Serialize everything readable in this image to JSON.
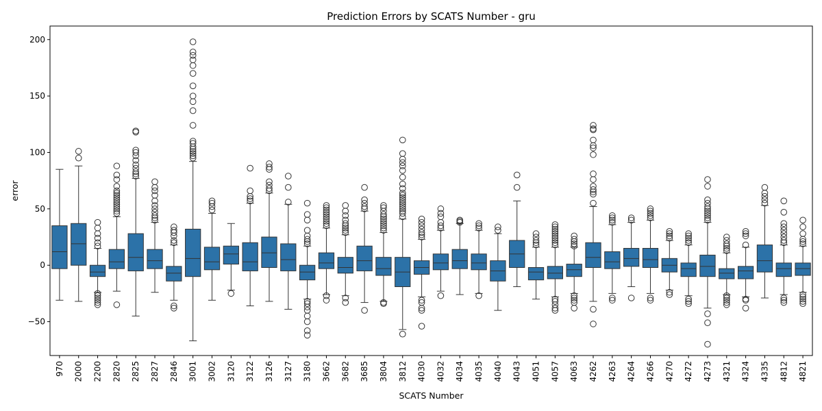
{
  "chart_data": {
    "type": "box",
    "title": "Prediction Errors by SCATS Number - gru",
    "xlabel": "SCATS Number",
    "ylabel": "error",
    "ylim": [
      -80,
      212
    ],
    "yticks": [
      -50,
      0,
      50,
      100,
      150,
      200
    ],
    "box_color": "#2c72a8",
    "line_color": "#333333",
    "grid": false,
    "categories": [
      "970",
      "2000",
      "2200",
      "2820",
      "2825",
      "2827",
      "2846",
      "3001",
      "3002",
      "3120",
      "3122",
      "3126",
      "3127",
      "3180",
      "3662",
      "3682",
      "3685",
      "3804",
      "3812",
      "4030",
      "4032",
      "4034",
      "4035",
      "4040",
      "4043",
      "4051",
      "4057",
      "4063",
      "4262",
      "4263",
      "4264",
      "4266",
      "4270",
      "4272",
      "4273",
      "4321",
      "4324",
      "4335",
      "4812",
      "4821"
    ],
    "boxes": [
      {
        "q1": -3,
        "median": 12,
        "q3": 35,
        "whislo": -31,
        "whishi": 85,
        "fliers": []
      },
      {
        "q1": 0,
        "median": 19,
        "q3": 37,
        "whislo": -32,
        "whishi": 88,
        "fliers": [
          95,
          101
        ]
      },
      {
        "q1": -10,
        "median": -6,
        "q3": 0,
        "whislo": -24,
        "whishi": 15,
        "fliers": [
          17,
          20,
          24,
          28,
          33,
          38,
          -25,
          -27,
          -29,
          -31,
          -33,
          -35
        ]
      },
      {
        "q1": -3,
        "median": 3,
        "q3": 14,
        "whislo": -23,
        "whishi": 43,
        "fliers": [
          46,
          48,
          50,
          52,
          54,
          56,
          58,
          60,
          62,
          64,
          66,
          70,
          76,
          80,
          88,
          -35
        ]
      },
      {
        "q1": -5,
        "median": 7,
        "q3": 28,
        "whislo": -45,
        "whishi": 77,
        "fliers": [
          79,
          81,
          83,
          86,
          89,
          93,
          97,
          100,
          102,
          118,
          119
        ]
      },
      {
        "q1": -3,
        "median": 4,
        "q3": 14,
        "whislo": -24,
        "whishi": 38,
        "fliers": [
          40,
          42,
          44,
          47,
          50,
          53,
          57,
          62,
          66,
          69,
          74
        ]
      },
      {
        "q1": -14,
        "median": -7,
        "q3": -1,
        "whislo": -31,
        "whishi": 18,
        "fliers": [
          20,
          22,
          26,
          29,
          31,
          34,
          -36,
          -38
        ]
      },
      {
        "q1": -10,
        "median": 6,
        "q3": 32,
        "whislo": -67,
        "whishi": 92,
        "fliers": [
          95,
          97,
          99,
          101,
          103,
          105,
          108,
          110,
          124,
          137,
          145,
          150,
          159,
          170,
          177,
          182,
          186,
          189,
          198
        ]
      },
      {
        "q1": -4,
        "median": 3,
        "q3": 16,
        "whislo": -31,
        "whishi": 46,
        "fliers": [
          49,
          52,
          55,
          57
        ]
      },
      {
        "q1": 1,
        "median": 10,
        "q3": 17,
        "whislo": -22,
        "whishi": 37,
        "fliers": [
          -25
        ]
      },
      {
        "q1": -5,
        "median": 3,
        "q3": 20,
        "whislo": -36,
        "whishi": 55,
        "fliers": [
          57,
          59,
          61,
          66,
          86
        ]
      },
      {
        "q1": -2,
        "median": 11,
        "q3": 25,
        "whislo": -32,
        "whishi": 64,
        "fliers": [
          66,
          68,
          71,
          74,
          85,
          87,
          90
        ]
      },
      {
        "q1": -5,
        "median": 5,
        "q3": 19,
        "whislo": -39,
        "whishi": 54,
        "fliers": [
          56,
          69,
          79
        ]
      },
      {
        "q1": -13,
        "median": -6,
        "q3": 0,
        "whislo": -30,
        "whishi": 17,
        "fliers": [
          19,
          21,
          23,
          26,
          31,
          40,
          45,
          55,
          -32,
          -34,
          -37,
          -40,
          -45,
          -50,
          -58,
          -62
        ]
      },
      {
        "q1": -3,
        "median": 2,
        "q3": 11,
        "whislo": -26,
        "whishi": 33,
        "fliers": [
          35,
          37,
          39,
          41,
          43,
          45,
          47,
          49,
          51,
          53,
          -27,
          -31
        ]
      },
      {
        "q1": -7,
        "median": -2,
        "q3": 7,
        "whislo": -27,
        "whishi": 27,
        "fliers": [
          29,
          31,
          33,
          35,
          37,
          40,
          44,
          48,
          53,
          -29,
          -33
        ]
      },
      {
        "q1": -5,
        "median": 4,
        "q3": 17,
        "whislo": -33,
        "whishi": 48,
        "fliers": [
          50,
          52,
          55,
          58,
          69,
          -40
        ]
      },
      {
        "q1": -9,
        "median": -3,
        "q3": 7,
        "whislo": -32,
        "whishi": 29,
        "fliers": [
          31,
          33,
          35,
          37,
          39,
          41,
          43,
          45,
          48,
          51,
          53,
          -33,
          -34
        ]
      },
      {
        "q1": -19,
        "median": -6,
        "q3": 7,
        "whislo": -57,
        "whishi": 41,
        "fliers": [
          43,
          46,
          48,
          50,
          52,
          54,
          56,
          58,
          60,
          62,
          64,
          68,
          72,
          78,
          84,
          88,
          91,
          94,
          99,
          111,
          -61
        ]
      },
      {
        "q1": -8,
        "median": -2,
        "q3": 4,
        "whislo": -28,
        "whishi": 23,
        "fliers": [
          25,
          27,
          29,
          32,
          35,
          38,
          41,
          -31,
          -33,
          -38,
          -40,
          -54
        ]
      },
      {
        "q1": -4,
        "median": 2,
        "q3": 10,
        "whislo": -23,
        "whishi": 31,
        "fliers": [
          33,
          35,
          38,
          43,
          46,
          50,
          -27
        ]
      },
      {
        "q1": -3,
        "median": 4,
        "q3": 14,
        "whislo": -26,
        "whishi": 37,
        "fliers": [
          38,
          39,
          40
        ]
      },
      {
        "q1": -4,
        "median": 2,
        "q3": 10,
        "whislo": -25,
        "whishi": 31,
        "fliers": [
          33,
          35,
          37,
          -27
        ]
      },
      {
        "q1": -14,
        "median": -5,
        "q3": 4,
        "whislo": -40,
        "whishi": 28,
        "fliers": [
          31,
          34
        ]
      },
      {
        "q1": -2,
        "median": 10,
        "q3": 22,
        "whislo": -19,
        "whishi": 57,
        "fliers": [
          69,
          80
        ]
      },
      {
        "q1": -13,
        "median": -6,
        "q3": -2,
        "whislo": -30,
        "whishi": 16,
        "fliers": [
          18,
          20,
          22,
          25,
          28
        ]
      },
      {
        "q1": -12,
        "median": -7,
        "q3": -1,
        "whislo": -28,
        "whishi": 16,
        "fliers": [
          18,
          20,
          22,
          24,
          26,
          28,
          30,
          32,
          34,
          36,
          -30,
          -32,
          -35,
          -38,
          -40
        ]
      },
      {
        "q1": -10,
        "median": -4,
        "q3": 1,
        "whislo": -25,
        "whishi": 16,
        "fliers": [
          17,
          19,
          21,
          23,
          26,
          -27,
          -29,
          -31,
          -33,
          -38
        ]
      },
      {
        "q1": -2,
        "median": 7,
        "q3": 20,
        "whislo": -32,
        "whishi": 52,
        "fliers": [
          55,
          63,
          65,
          67,
          70,
          76,
          81,
          98,
          104,
          106,
          111,
          120,
          121,
          124,
          -39,
          -52
        ]
      },
      {
        "q1": -3,
        "median": 3,
        "q3": 12,
        "whislo": -25,
        "whishi": 36,
        "fliers": [
          38,
          40,
          42,
          44,
          -29,
          -31
        ]
      },
      {
        "q1": -1,
        "median": 6,
        "q3": 15,
        "whislo": -19,
        "whishi": 38,
        "fliers": [
          40,
          42,
          -29
        ]
      },
      {
        "q1": -2,
        "median": 5,
        "q3": 15,
        "whislo": -25,
        "whishi": 40,
        "fliers": [
          42,
          44,
          46,
          48,
          50,
          -29,
          -31
        ]
      },
      {
        "q1": -6,
        "median": 0,
        "q3": 6,
        "whislo": -22,
        "whishi": 22,
        "fliers": [
          24,
          26,
          28,
          30,
          -24,
          -26
        ]
      },
      {
        "q1": -10,
        "median": -3,
        "q3": 2,
        "whislo": -27,
        "whishi": 18,
        "fliers": [
          20,
          22,
          24,
          26,
          28,
          -30,
          -32,
          -34
        ]
      },
      {
        "q1": -10,
        "median": -1,
        "q3": 9,
        "whislo": -38,
        "whishi": 38,
        "fliers": [
          40,
          42,
          44,
          46,
          48,
          50,
          52,
          55,
          58,
          70,
          76,
          -43,
          -51,
          -70
        ]
      },
      {
        "q1": -12,
        "median": -7,
        "q3": -3,
        "whislo": -26,
        "whishi": 11,
        "fliers": [
          13,
          15,
          17,
          19,
          22,
          25,
          -27,
          -29,
          -31,
          -33,
          -35
        ]
      },
      {
        "q1": -12,
        "median": -5,
        "q3": -1,
        "whislo": -28,
        "whishi": 16,
        "fliers": [
          18,
          26,
          28,
          30,
          -30,
          -31,
          -38
        ]
      },
      {
        "q1": -6,
        "median": 4,
        "q3": 18,
        "whislo": -29,
        "whishi": 53,
        "fliers": [
          55,
          58,
          61,
          64,
          69
        ]
      },
      {
        "q1": -10,
        "median": -3,
        "q3": 2,
        "whislo": -26,
        "whishi": 18,
        "fliers": [
          20,
          22,
          25,
          28,
          31,
          34,
          37,
          47,
          57,
          -29,
          -31,
          -33
        ]
      },
      {
        "q1": -9,
        "median": -3,
        "q3": 2,
        "whislo": -24,
        "whishi": 17,
        "fliers": [
          19,
          21,
          23,
          28,
          34,
          40,
          -26,
          -28,
          -30,
          -32,
          -34
        ]
      }
    ]
  }
}
